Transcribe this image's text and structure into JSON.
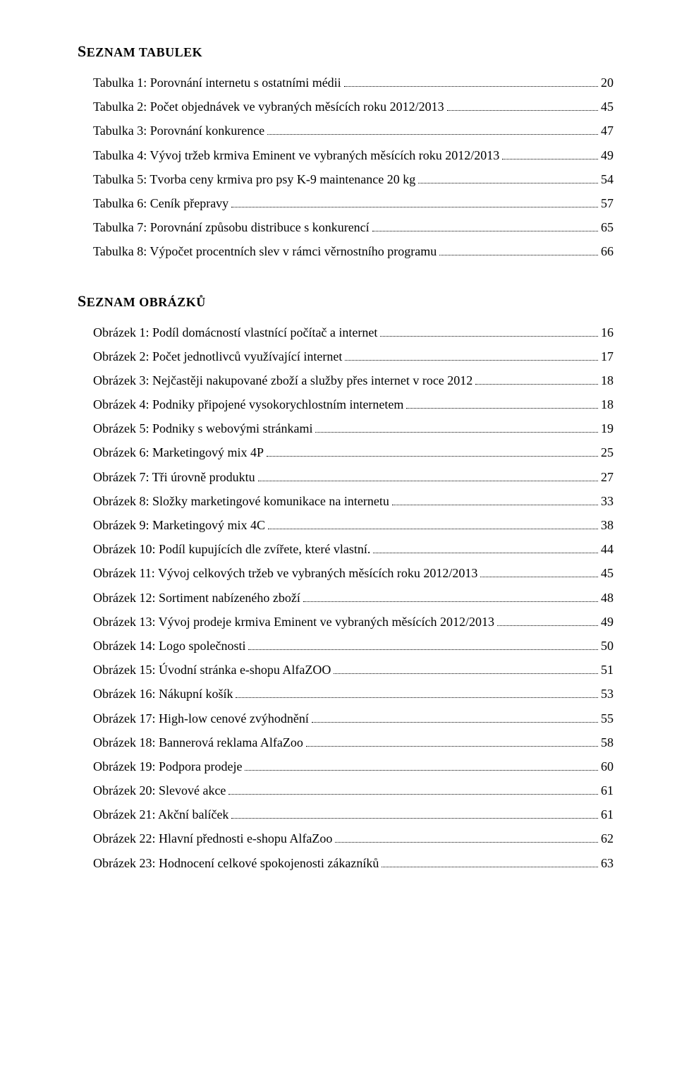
{
  "headings": {
    "tables_bold": "S",
    "tables_caps": "EZNAM TABULEK",
    "figures_bold": "S",
    "figures_caps": "EZNAM OBRÁZKŮ"
  },
  "tables": [
    {
      "label": "Tabulka 1: Porovnání internetu s ostatními médii",
      "page": "20"
    },
    {
      "label": "Tabulka 2: Počet objednávek ve vybraných měsících roku 2012/2013",
      "page": "45"
    },
    {
      "label": "Tabulka 3: Porovnání konkurence",
      "page": "47"
    },
    {
      "label": "Tabulka 4: Vývoj tržeb krmiva Eminent ve vybraných měsících roku 2012/2013",
      "page": "49"
    },
    {
      "label": "Tabulka 5: Tvorba ceny krmiva pro psy K-9 maintenance 20 kg",
      "page": "54"
    },
    {
      "label": "Tabulka 6: Ceník přepravy",
      "page": "57"
    },
    {
      "label": "Tabulka 7: Porovnání způsobu distribuce s konkurencí",
      "page": "65"
    },
    {
      "label": "Tabulka 8: Výpočet procentních slev v rámci věrnostního programu",
      "page": "66"
    }
  ],
  "figures": [
    {
      "label": "Obrázek 1: Podíl domácností vlastnící počítač a internet",
      "page": "16"
    },
    {
      "label": "Obrázek 2: Počet jednotlivců využívající internet",
      "page": "17"
    },
    {
      "label": "Obrázek 3: Nejčastěji nakupované zboží a služby přes internet v roce 2012",
      "page": "18"
    },
    {
      "label": "Obrázek 4: Podniky připojené vysokorychlostním internetem",
      "page": "18"
    },
    {
      "label": "Obrázek 5: Podniky s webovými stránkami",
      "page": "19"
    },
    {
      "label": "Obrázek 6: Marketingový mix 4P",
      "page": "25"
    },
    {
      "label": "Obrázek 7: Tři úrovně produktu",
      "page": "27"
    },
    {
      "label": "Obrázek 8: Složky marketingové komunikace na internetu",
      "page": "33"
    },
    {
      "label": "Obrázek 9: Marketingový mix 4C",
      "page": "38"
    },
    {
      "label": "Obrázek 10: Podíl kupujících dle zvířete, které vlastní.",
      "page": "44"
    },
    {
      "label": "Obrázek 11: Vývoj celkových tržeb ve vybraných měsících roku 2012/2013",
      "page": "45"
    },
    {
      "label": "Obrázek 12: Sortiment nabízeného zboží",
      "page": "48"
    },
    {
      "label": "Obrázek 13: Vývoj prodeje krmiva Eminent ve vybraných měsících 2012/2013",
      "page": "49"
    },
    {
      "label": "Obrázek 14: Logo společnosti",
      "page": "50"
    },
    {
      "label": "Obrázek 15: Úvodní stránka e-shopu AlfaZOO",
      "page": "51"
    },
    {
      "label": "Obrázek 16: Nákupní košík",
      "page": "53"
    },
    {
      "label": "Obrázek 17: High-low cenové zvýhodnění",
      "page": "55"
    },
    {
      "label": "Obrázek 18: Bannerová reklama AlfaZoo",
      "page": "58"
    },
    {
      "label": "Obrázek 19: Podpora prodeje",
      "page": "60"
    },
    {
      "label": "Obrázek 20: Slevové akce",
      "page": "61"
    },
    {
      "label": "Obrázek 21: Akční balíček",
      "page": "61"
    },
    {
      "label": "Obrázek 22: Hlavní přednosti e-shopu AlfaZoo",
      "page": "62"
    },
    {
      "label": "Obrázek 23: Hodnocení celkové spokojenosti zákazníků",
      "page": "63"
    }
  ]
}
